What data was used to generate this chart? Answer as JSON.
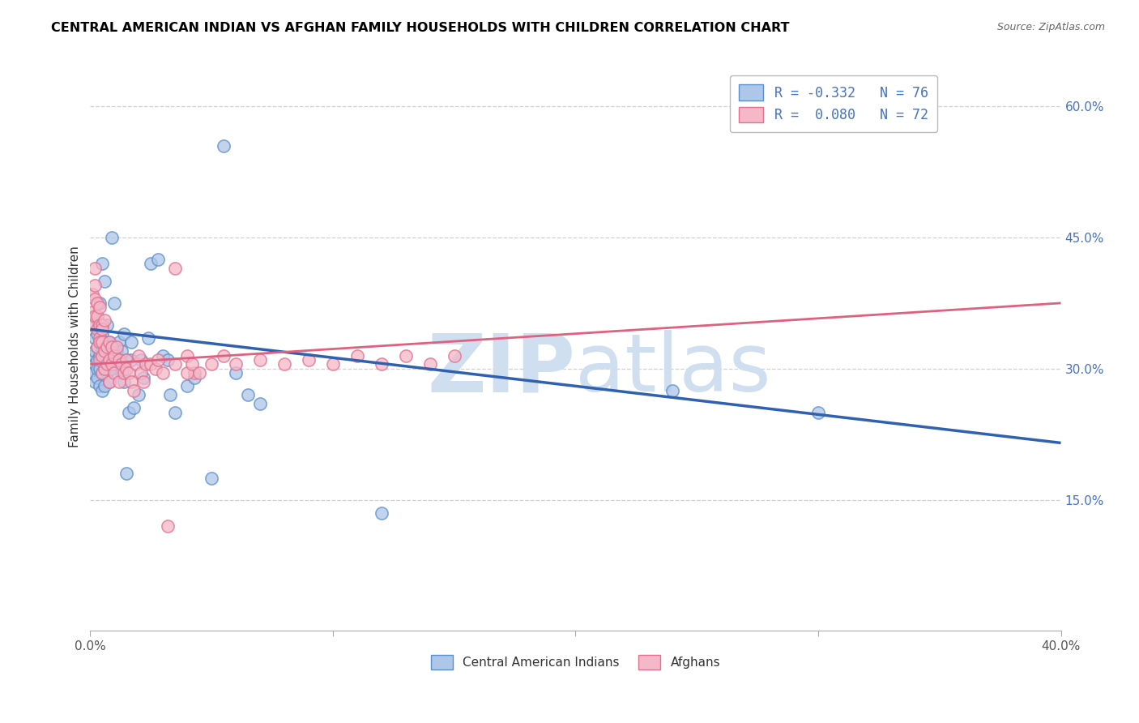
{
  "title": "CENTRAL AMERICAN INDIAN VS AFGHAN FAMILY HOUSEHOLDS WITH CHILDREN CORRELATION CHART",
  "source": "Source: ZipAtlas.com",
  "ylabel": "Family Households with Children",
  "x_min": 0.0,
  "x_max": 0.4,
  "y_min": 0.0,
  "y_max": 0.65,
  "y_ticks": [
    0.15,
    0.3,
    0.45,
    0.6
  ],
  "y_tick_labels": [
    "15.0%",
    "30.0%",
    "45.0%",
    "60.0%"
  ],
  "x_ticks": [
    0.0,
    0.1,
    0.2,
    0.3,
    0.4
  ],
  "x_tick_labels": [
    "0.0%",
    "",
    "",
    "",
    "40.0%"
  ],
  "legend_blue_R": "R = -0.332",
  "legend_blue_N": "N = 76",
  "legend_pink_R": "R =  0.080",
  "legend_pink_N": "N = 72",
  "blue_marker_color": "#aec6e8",
  "blue_edge_color": "#5b8fc9",
  "pink_marker_color": "#f4b8c8",
  "pink_edge_color": "#e07090",
  "blue_line_color": "#3060b0",
  "pink_line_color": "#e06080",
  "watermark_zip": "ZIP",
  "watermark_atlas": "atlas",
  "watermark_color": "#d0dff0",
  "blue_line_x0": 0.0,
  "blue_line_y0": 0.345,
  "blue_line_x1": 0.4,
  "blue_line_y1": 0.215,
  "pink_line_x0": 0.0,
  "pink_line_y0": 0.305,
  "pink_line_x1": 0.4,
  "pink_line_y1": 0.375,
  "blue_scatter_x": [
    0.001,
    0.001,
    0.002,
    0.002,
    0.002,
    0.002,
    0.003,
    0.003,
    0.003,
    0.003,
    0.003,
    0.003,
    0.004,
    0.004,
    0.004,
    0.004,
    0.004,
    0.004,
    0.005,
    0.005,
    0.005,
    0.005,
    0.005,
    0.005,
    0.006,
    0.006,
    0.006,
    0.006,
    0.006,
    0.007,
    0.007,
    0.007,
    0.007,
    0.008,
    0.008,
    0.008,
    0.008,
    0.009,
    0.009,
    0.009,
    0.01,
    0.01,
    0.01,
    0.011,
    0.012,
    0.012,
    0.013,
    0.013,
    0.014,
    0.014,
    0.015,
    0.015,
    0.016,
    0.017,
    0.017,
    0.018,
    0.02,
    0.021,
    0.022,
    0.024,
    0.025,
    0.028,
    0.03,
    0.032,
    0.033,
    0.035,
    0.04,
    0.043,
    0.05,
    0.055,
    0.06,
    0.065,
    0.07,
    0.12,
    0.24,
    0.3
  ],
  "blue_scatter_y": [
    0.295,
    0.315,
    0.285,
    0.305,
    0.32,
    0.335,
    0.29,
    0.31,
    0.325,
    0.34,
    0.355,
    0.3,
    0.28,
    0.3,
    0.315,
    0.33,
    0.345,
    0.375,
    0.275,
    0.295,
    0.31,
    0.325,
    0.34,
    0.42,
    0.28,
    0.3,
    0.315,
    0.33,
    0.4,
    0.295,
    0.31,
    0.33,
    0.35,
    0.285,
    0.3,
    0.315,
    0.33,
    0.3,
    0.32,
    0.45,
    0.305,
    0.325,
    0.375,
    0.32,
    0.31,
    0.33,
    0.295,
    0.32,
    0.285,
    0.34,
    0.18,
    0.31,
    0.25,
    0.31,
    0.33,
    0.255,
    0.27,
    0.31,
    0.29,
    0.335,
    0.42,
    0.425,
    0.315,
    0.31,
    0.27,
    0.25,
    0.28,
    0.29,
    0.175,
    0.555,
    0.295,
    0.27,
    0.26,
    0.135,
    0.275,
    0.25
  ],
  "pink_scatter_x": [
    0.001,
    0.001,
    0.001,
    0.002,
    0.002,
    0.002,
    0.002,
    0.003,
    0.003,
    0.003,
    0.003,
    0.004,
    0.004,
    0.004,
    0.004,
    0.004,
    0.005,
    0.005,
    0.005,
    0.005,
    0.005,
    0.006,
    0.006,
    0.006,
    0.007,
    0.007,
    0.008,
    0.008,
    0.008,
    0.009,
    0.009,
    0.01,
    0.01,
    0.011,
    0.012,
    0.012,
    0.013,
    0.014,
    0.015,
    0.015,
    0.016,
    0.017,
    0.018,
    0.019,
    0.02,
    0.021,
    0.022,
    0.023,
    0.025,
    0.027,
    0.028,
    0.03,
    0.032,
    0.035,
    0.04,
    0.043,
    0.05,
    0.055,
    0.06,
    0.07,
    0.08,
    0.09,
    0.1,
    0.11,
    0.12,
    0.13,
    0.14,
    0.15,
    0.035,
    0.04,
    0.042,
    0.045
  ],
  "pink_scatter_y": [
    0.365,
    0.385,
    0.35,
    0.36,
    0.38,
    0.395,
    0.415,
    0.325,
    0.345,
    0.36,
    0.375,
    0.335,
    0.31,
    0.33,
    0.35,
    0.37,
    0.295,
    0.315,
    0.33,
    0.35,
    0.345,
    0.3,
    0.32,
    0.355,
    0.305,
    0.325,
    0.285,
    0.31,
    0.33,
    0.305,
    0.325,
    0.295,
    0.315,
    0.325,
    0.285,
    0.31,
    0.305,
    0.295,
    0.31,
    0.3,
    0.295,
    0.285,
    0.275,
    0.305,
    0.315,
    0.295,
    0.285,
    0.305,
    0.305,
    0.3,
    0.31,
    0.295,
    0.12,
    0.305,
    0.315,
    0.295,
    0.305,
    0.315,
    0.305,
    0.31,
    0.305,
    0.31,
    0.305,
    0.315,
    0.305,
    0.315,
    0.305,
    0.315,
    0.415,
    0.295,
    0.305,
    0.295
  ]
}
